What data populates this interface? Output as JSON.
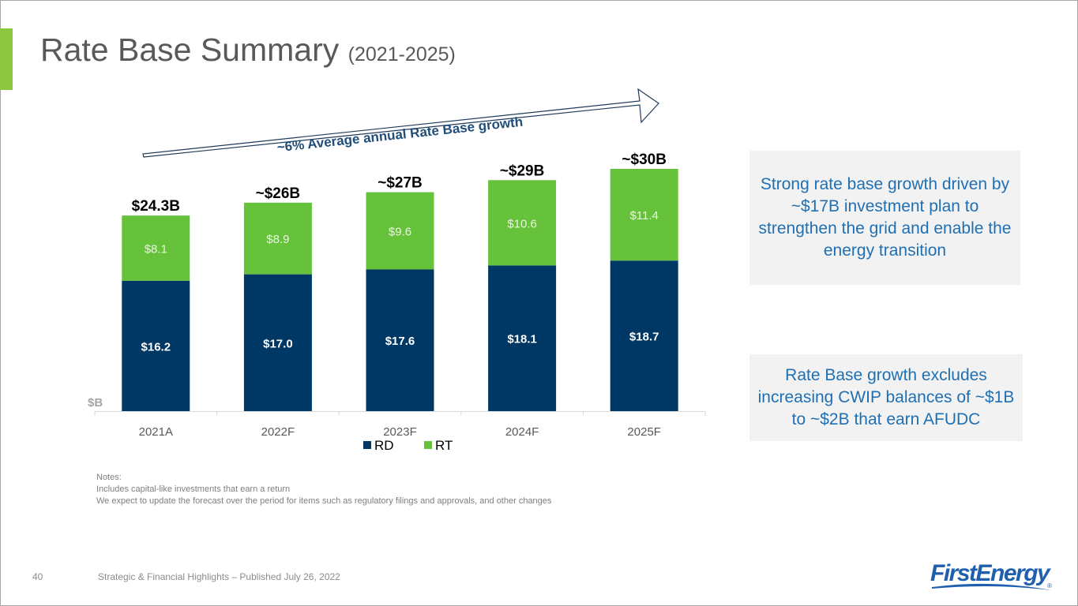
{
  "slide": {
    "title": "Rate Base Summary",
    "title_suffix": "(2021-2025)",
    "page_number": "40",
    "footer": "Strategic & Financial Highlights – Published July 26, 2022",
    "logo_text": "FirstEnergy",
    "logo_mark": "®",
    "accent_color": "#8dc63f"
  },
  "growth_arrow": {
    "label": "~6% Average annual Rate Base growth"
  },
  "callouts": [
    {
      "text": "Strong rate base growth driven by ~$17B investment plan to strengthen the grid and enable the energy transition"
    },
    {
      "text": "Rate Base growth excludes increasing CWIP balances of ~$1B to ~$2B that earn AFUDC"
    }
  ],
  "notes": {
    "heading": "Notes:",
    "lines": [
      "Includes capital-like investments that earn a return",
      "We expect to update the forecast over the period for items such as regulatory filings and approvals, and other changes"
    ]
  },
  "chart_data": {
    "type": "bar",
    "stacked": true,
    "title": "",
    "xlabel": "",
    "ylabel": "$B",
    "unit_label": "$B",
    "categories": [
      "2021A",
      "2022F",
      "2023F",
      "2024F",
      "2025F"
    ],
    "series": [
      {
        "name": "RD",
        "color": "#003865",
        "values": [
          16.2,
          17.0,
          17.6,
          18.1,
          18.7
        ],
        "labels": [
          "$16.2",
          "$17.0",
          "$17.6",
          "$18.1",
          "$18.7"
        ]
      },
      {
        "name": "RT",
        "color": "#66c23a",
        "values": [
          8.1,
          8.9,
          9.6,
          10.6,
          11.4
        ],
        "labels": [
          "$8.1",
          "$8.9",
          "$9.6",
          "$10.6",
          "$11.4"
        ]
      }
    ],
    "totals": [
      "$24.3B",
      "~$26B",
      "~$27B",
      "~$29B",
      "~$30B"
    ],
    "ylim": [
      0,
      30.1
    ],
    "grid": false,
    "legend": {
      "position": "bottom",
      "entries": [
        "RD",
        "RT"
      ]
    }
  }
}
